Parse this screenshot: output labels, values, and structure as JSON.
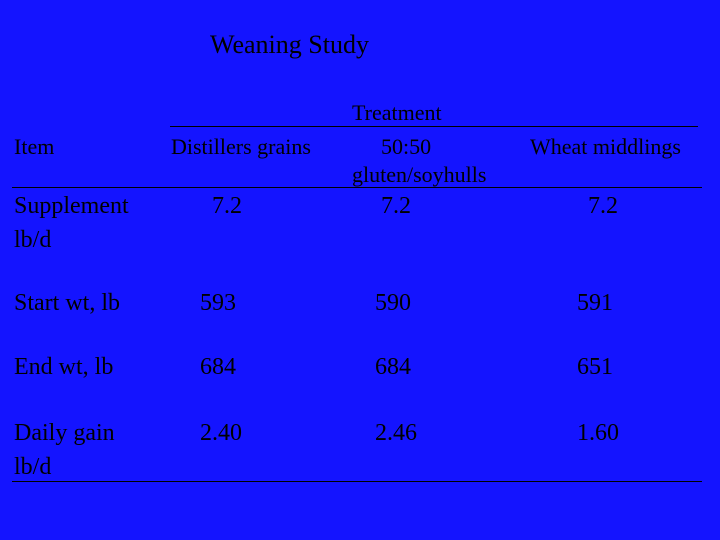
{
  "slide": {
    "title": "Weaning Study"
  },
  "table": {
    "group_header": "Treatment",
    "item_header": "Item",
    "columns": [
      {
        "line1": "Distillers grains",
        "line2": ""
      },
      {
        "line1": "50:50",
        "line2": "gluten/soyhulls"
      },
      {
        "line1": "Wheat middlings",
        "line2": ""
      }
    ],
    "rows": [
      {
        "label_line1": "Supplement",
        "label_line2": "lb/d",
        "values": [
          "7.2",
          "7.2",
          "7.2"
        ]
      },
      {
        "label_line1": "Start wt, lb",
        "label_line2": "",
        "values": [
          "593",
          "590",
          "591"
        ]
      },
      {
        "label_line1": "End wt, lb",
        "label_line2": "",
        "values": [
          "684",
          "684",
          "651"
        ]
      },
      {
        "label_line1": "Daily gain",
        "label_line2": "lb/d",
        "values": [
          "2.40",
          "2.46",
          "1.60"
        ]
      }
    ]
  }
}
